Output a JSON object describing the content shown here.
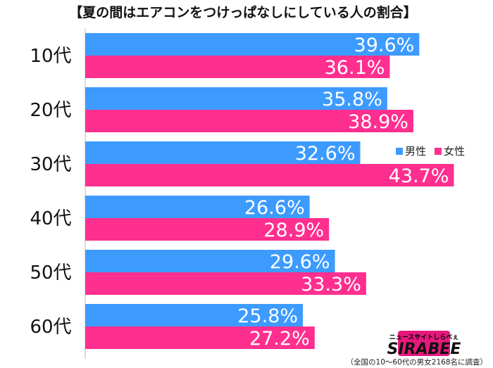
{
  "chart_data": {
    "type": "bar",
    "orientation": "horizontal",
    "title": "【夏の間はエアコンをつけっぱなしにしている人の割合】",
    "categories": [
      "10代",
      "20代",
      "30代",
      "40代",
      "50代",
      "60代"
    ],
    "series": [
      {
        "name": "男性",
        "color": "#3d9bff",
        "values": [
          39.6,
          35.8,
          32.6,
          26.6,
          29.6,
          25.8
        ]
      },
      {
        "name": "女性",
        "color": "#ff2f8f",
        "values": [
          36.1,
          38.9,
          43.7,
          28.9,
          33.3,
          27.2
        ]
      }
    ],
    "value_suffix": "%",
    "xlim": [
      0,
      46
    ],
    "grid": false,
    "legend_position": "right, within the 30代 group",
    "footnote": "（全国の10～60代の男女2168名に調査）"
  },
  "logo": {
    "small_text": "ニュースサイトしらべぇ",
    "big_text": "SIRABEE",
    "color": "#e5197d"
  }
}
